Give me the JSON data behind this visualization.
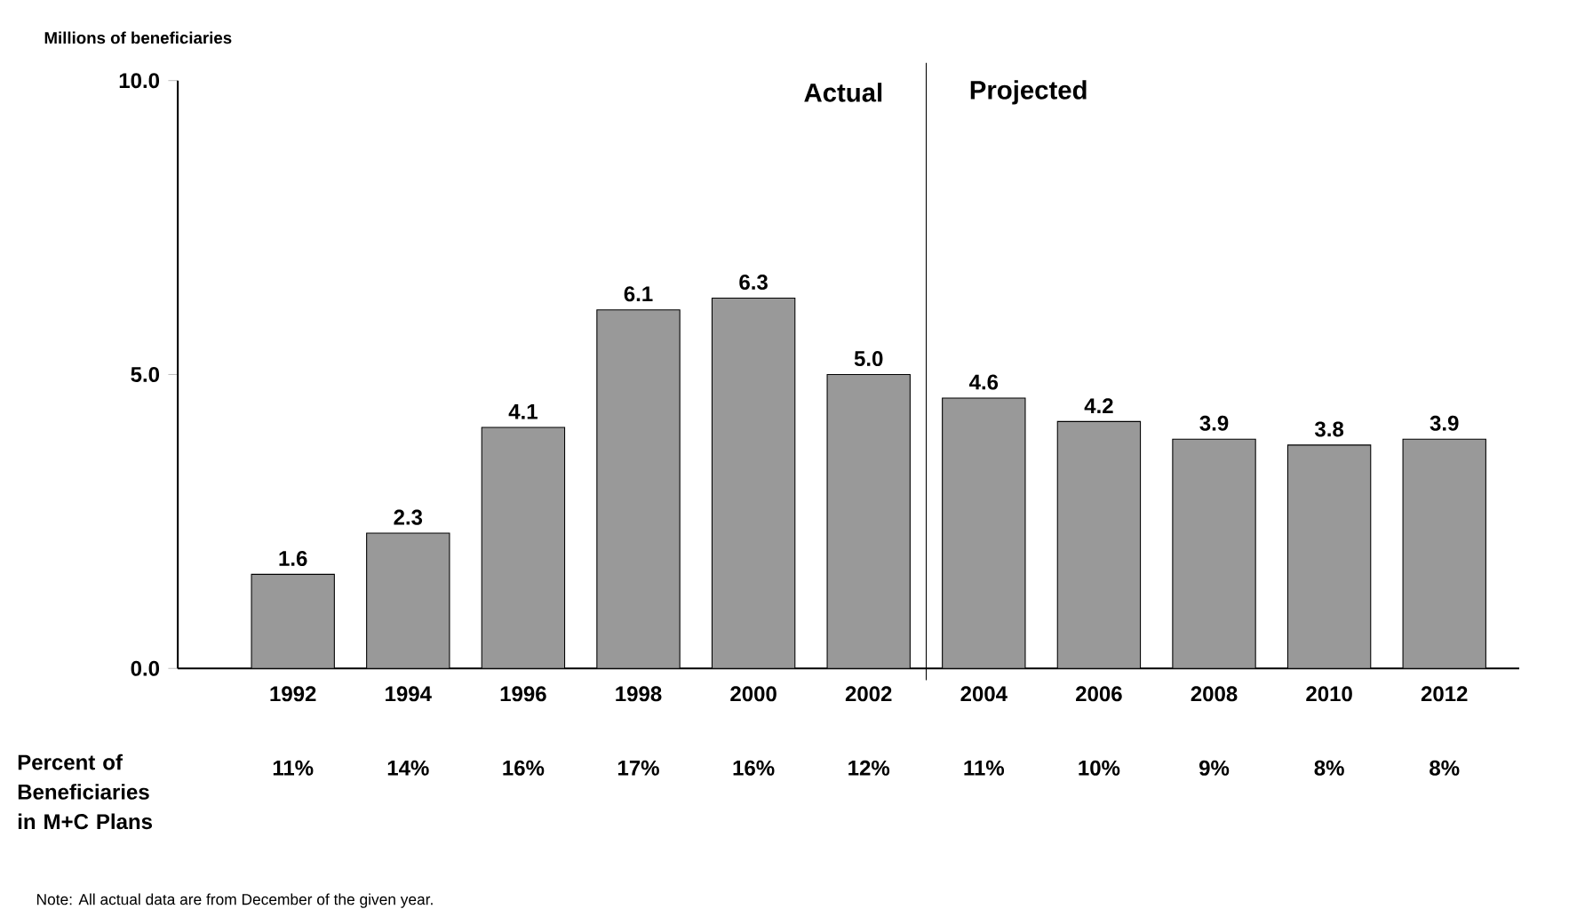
{
  "chart_data": {
    "type": "bar",
    "ylabel": "Millions of beneficiaries",
    "categories": [
      "1992",
      "1994",
      "1996",
      "1998",
      "2000",
      "2002",
      "2004",
      "2006",
      "2008",
      "2010",
      "2012"
    ],
    "values": [
      1.6,
      2.3,
      4.1,
      6.1,
      6.3,
      5.0,
      4.6,
      4.2,
      3.9,
      3.8,
      3.9
    ],
    "value_labels": [
      "1.6",
      "2.3",
      "4.1",
      "6.1",
      "6.3",
      "5.0",
      "4.6",
      "4.2",
      "3.9",
      "3.8",
      "3.9"
    ],
    "color": "#999999",
    "ylim": [
      0,
      10
    ],
    "yticks": [
      {
        "value": 0,
        "label": "0.0"
      },
      {
        "value": 5,
        "label": "5.0"
      },
      {
        "value": 10,
        "label": "10.0"
      }
    ],
    "annotations": [
      "Actual",
      "Projected",
      "Percent of Beneficiaries in M+C Plans",
      "Note: All actual data are from December of the given year.",
      "11%",
      "14%",
      "16%",
      "17%",
      "16%",
      "12%",
      "11%",
      "10%",
      "9%",
      "8%",
      "8%"
    ]
  }
}
